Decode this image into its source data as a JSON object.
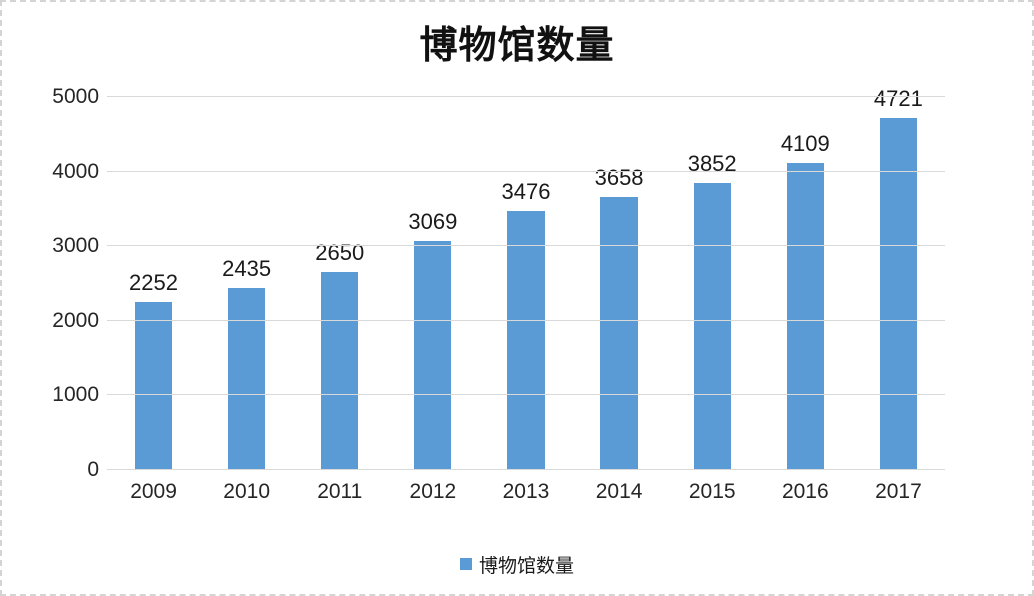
{
  "chart_data": {
    "type": "bar",
    "title": "博物馆数量",
    "categories": [
      "2009",
      "2010",
      "2011",
      "2012",
      "2013",
      "2014",
      "2015",
      "2016",
      "2017"
    ],
    "series": [
      {
        "name": "博物馆数量",
        "values": [
          2252,
          2435,
          2650,
          3069,
          3476,
          3658,
          3852,
          4109,
          4721
        ]
      }
    ],
    "data_labels": [
      2252,
      2435,
      2650,
      3069,
      3476,
      3658,
      3852,
      4109,
      4721
    ],
    "legend": [
      "博物馆数量"
    ],
    "legend_position": "bottom",
    "xlabel": "",
    "ylabel": "",
    "ylim": [
      0,
      5000
    ],
    "yticks": [
      0,
      1000,
      2000,
      3000,
      4000,
      5000
    ],
    "grid": true,
    "bar_color": "#5b9bd5",
    "gridline_color": "#d9d9d9"
  }
}
